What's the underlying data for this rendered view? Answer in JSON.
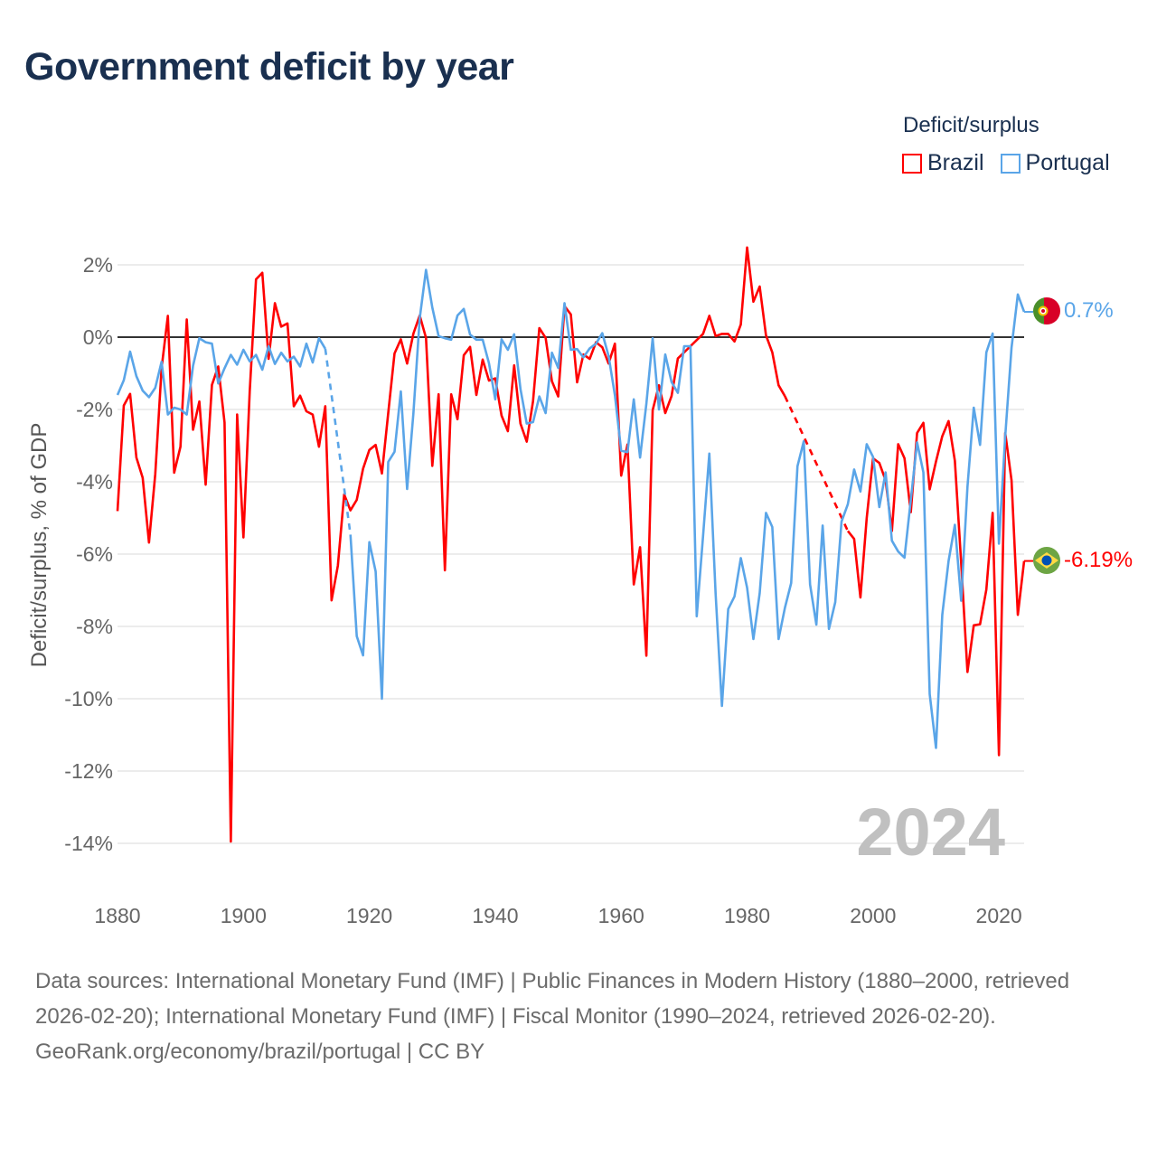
{
  "title": "Government deficit by year",
  "legend": {
    "title": "Deficit/surplus",
    "items": [
      {
        "label": "Brazil",
        "color": "#ff0000"
      },
      {
        "label": "Portugal",
        "color": "#5aa5e8"
      }
    ]
  },
  "current_year": "2024",
  "end_labels": {
    "brazil": "-6.19%",
    "portugal": "0.7%"
  },
  "footer": {
    "sources": "Data sources: International Monetary Fund (IMF) | Public Finances in Modern History (1880–2000, retrieved 2026-02-20); International Monetary Fund (IMF) | Fiscal Monitor (1990–2024, retrieved 2026-02-20).",
    "credit": "GeoRank.org/economy/brazil/portugal | CC BY"
  },
  "chart_data": {
    "type": "line",
    "title": "Government deficit by year",
    "xlabel": "",
    "ylabel": "Deficit/surplus, % of GDP",
    "xlim": [
      1880,
      2024
    ],
    "ylim": [
      -14,
      2
    ],
    "x_ticks": [
      1880,
      1900,
      1920,
      1940,
      1960,
      1980,
      2000,
      2020
    ],
    "x_tick_labels": [
      "1880",
      "1900",
      "1920",
      "1940",
      "1960",
      "1980",
      "2000",
      "2020"
    ],
    "y_ticks": [
      2,
      0,
      -2,
      -4,
      -6,
      -8,
      -10,
      -12,
      -14
    ],
    "y_tick_labels": [
      "2%",
      "0%",
      "-2%",
      "-4%",
      "-6%",
      "-8%",
      "-10%",
      "-12%",
      "-14%"
    ],
    "grid": true,
    "legend_position": "top-right",
    "x_start": 1880,
    "series": [
      {
        "name": "Brazil",
        "color": "#ff0000",
        "values": [
          -4.81,
          -1.89,
          -1.57,
          -3.33,
          -3.89,
          -5.68,
          -3.78,
          -0.86,
          0.59,
          -3.75,
          -3.03,
          0.49,
          -2.56,
          -1.78,
          -4.08,
          -1.32,
          -0.81,
          -2.36,
          -13.95,
          -2.14,
          -5.54,
          -1.5,
          1.6,
          1.78,
          -0.6,
          0.94,
          0.29,
          0.38,
          -1.91,
          -1.62,
          -2.05,
          -2.14,
          -3.03,
          -1.91,
          -7.28,
          -6.32,
          -4.35,
          -4.79,
          -4.5,
          -3.64,
          -3.12,
          -2.98,
          -3.77,
          -2.1,
          -0.45,
          -0.06,
          -0.73,
          0.1,
          0.6,
          -0.02,
          -3.56,
          -1.58,
          -6.45,
          -1.58,
          -2.27,
          -0.5,
          -0.27,
          -1.6,
          -0.62,
          -1.2,
          -1.14,
          -2.17,
          -2.6,
          -0.78,
          -2.39,
          -2.89,
          -1.77,
          0.25,
          -0.02,
          -1.22,
          -1.64,
          0.86,
          0.63,
          -1.25,
          -0.48,
          -0.6,
          -0.14,
          -0.28,
          -0.73,
          -0.18,
          -3.83,
          -2.97,
          -6.84,
          -5.81,
          -8.81,
          -2.02,
          -1.33,
          -2.1,
          -1.63,
          -0.59,
          -0.42,
          -0.25,
          -0.08,
          0.09,
          0.59,
          0.03,
          0.09,
          0.09,
          -0.12,
          0.35,
          2.48,
          0.98,
          1.4,
          0.05,
          -0.42,
          -1.33,
          -1.63,
          null,
          null,
          null,
          null,
          null,
          null,
          null,
          null,
          null,
          -5.36,
          -5.58,
          -7.2,
          -5.0,
          -3.35,
          -3.48,
          -3.96,
          -5.36,
          -2.96,
          -3.35,
          -4.84,
          -2.65,
          -2.37,
          -4.21,
          -3.44,
          -2.74,
          -2.32,
          -3.42,
          -6.24,
          -9.26,
          -7.97,
          -7.94,
          -6.98,
          -4.86,
          -11.56,
          -2.65,
          -3.96,
          -7.68,
          -6.19
        ]
      },
      {
        "name": "Portugal",
        "color": "#5aa5e8",
        "values": [
          -1.6,
          -1.19,
          -0.4,
          -1.08,
          -1.48,
          -1.66,
          -1.4,
          -0.68,
          -2.14,
          -1.95,
          -2.0,
          -2.14,
          -0.79,
          -0.03,
          -0.14,
          -0.18,
          -1.28,
          -0.86,
          -0.49,
          -0.76,
          -0.35,
          -0.67,
          -0.49,
          -0.9,
          -0.25,
          -0.74,
          -0.43,
          -0.67,
          -0.54,
          -0.81,
          -0.18,
          -0.7,
          -0.03,
          -0.32,
          null,
          null,
          null,
          -5.46,
          -8.27,
          -8.8,
          -5.67,
          -6.48,
          -10.0,
          -3.45,
          -3.17,
          -1.5,
          -4.2,
          -2.1,
          0.52,
          1.86,
          0.82,
          0.03,
          -0.03,
          -0.07,
          0.6,
          0.78,
          0.07,
          -0.07,
          -0.07,
          -0.72,
          -1.72,
          -0.06,
          -0.35,
          0.08,
          -1.43,
          -2.39,
          -2.35,
          -1.64,
          -2.1,
          -0.43,
          -0.85,
          0.94,
          -0.35,
          -0.33,
          -0.56,
          -0.31,
          -0.18,
          0.11,
          -0.52,
          -1.6,
          -3.14,
          -3.18,
          -1.72,
          -3.33,
          -1.84,
          -0.03,
          -2.0,
          -0.48,
          -1.24,
          -1.54,
          -0.25,
          -0.25,
          -7.72,
          -5.51,
          -3.22,
          -7.1,
          -10.2,
          -7.52,
          -7.17,
          -6.11,
          -6.93,
          -8.35,
          -7.08,
          -4.86,
          -5.25,
          -8.35,
          -7.49,
          -6.8,
          -3.57,
          -2.88,
          -6.84,
          -7.95,
          -5.21,
          -8.07,
          -7.33,
          -5.1,
          -4.62,
          -3.66,
          -4.27,
          -2.96,
          -3.31,
          -4.7,
          -3.74,
          -5.63,
          -5.93,
          -6.1,
          -4.5,
          -2.91,
          -3.74,
          -9.87,
          -11.36,
          -7.68,
          -6.19,
          -5.19,
          -7.29,
          -4.14,
          -1.95,
          -2.98,
          -0.42,
          0.1,
          -5.71,
          -2.74,
          -0.29,
          1.18,
          0.7
        ]
      }
    ]
  }
}
